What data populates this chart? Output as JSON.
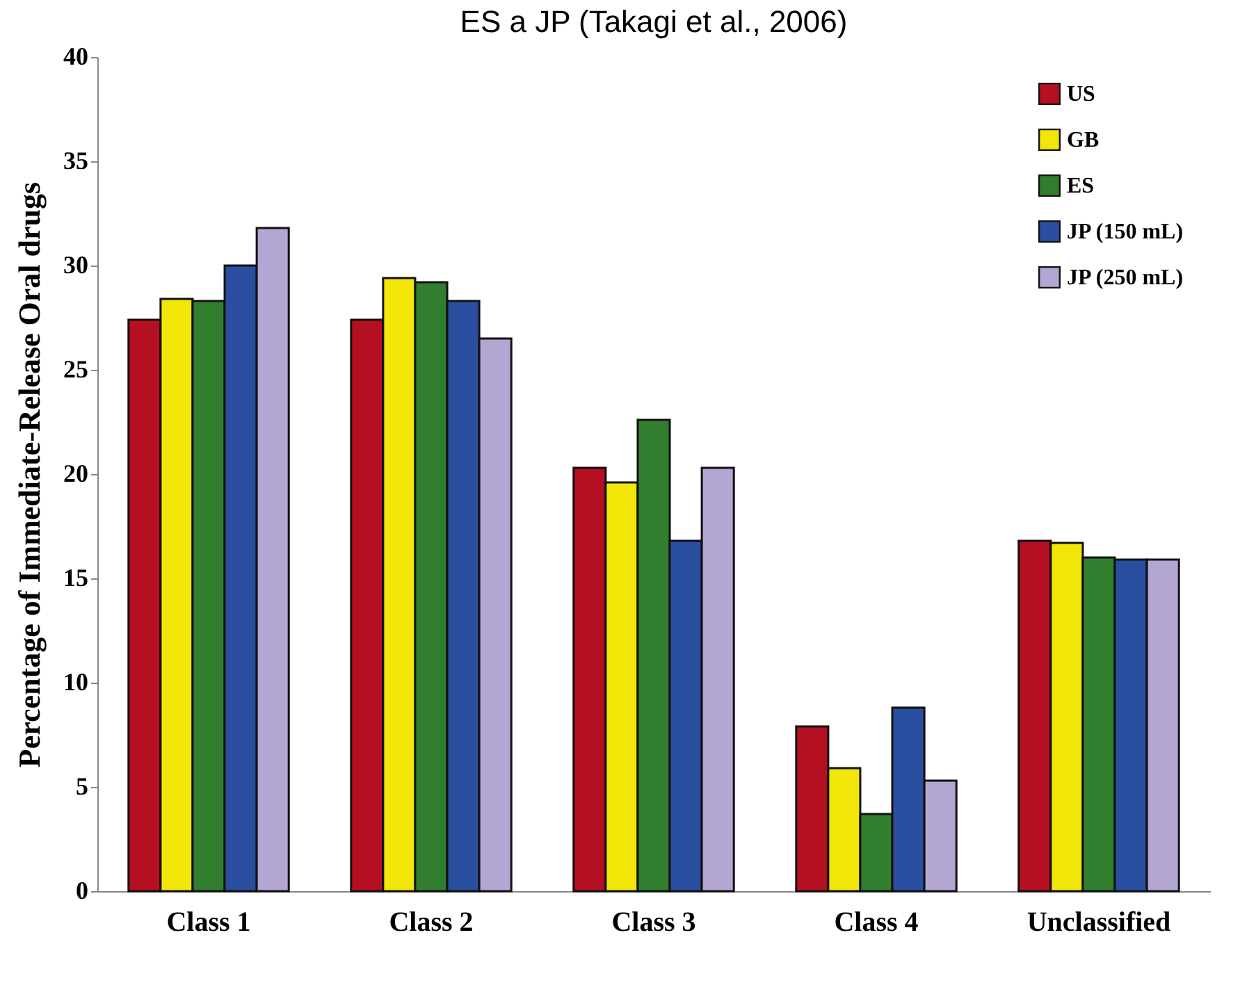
{
  "chart_data": {
    "type": "bar",
    "title": "ES a JP (Takagi et al., 2006)",
    "ylabel": "Percentage of Immediate-Release Oral drugs",
    "categories": [
      "Class 1",
      "Class 2",
      "Class 3",
      "Class 4",
      "Unclassified"
    ],
    "series": [
      {
        "name": "US",
        "color": "#b50f22",
        "values": [
          27.4,
          27.4,
          20.3,
          7.9,
          16.8
        ]
      },
      {
        "name": "GB",
        "color": "#f2e608",
        "values": [
          28.4,
          29.4,
          19.6,
          5.9,
          16.7
        ]
      },
      {
        "name": "ES",
        "color": "#317f2e",
        "values": [
          28.3,
          29.2,
          22.6,
          3.7,
          16.0
        ]
      },
      {
        "name": "JP (150 mL)",
        "color": "#2a4fa0",
        "values": [
          30.0,
          28.3,
          16.8,
          8.8,
          15.9
        ]
      },
      {
        "name": "JP (250 mL)",
        "color": "#b3a6d2",
        "values": [
          31.8,
          26.5,
          20.3,
          5.3,
          15.9
        ]
      }
    ],
    "ylim": [
      0,
      40
    ],
    "yticks": [
      0,
      5,
      10,
      15,
      20,
      25,
      30,
      35,
      40
    ],
    "grid": false,
    "legend": "top right"
  }
}
